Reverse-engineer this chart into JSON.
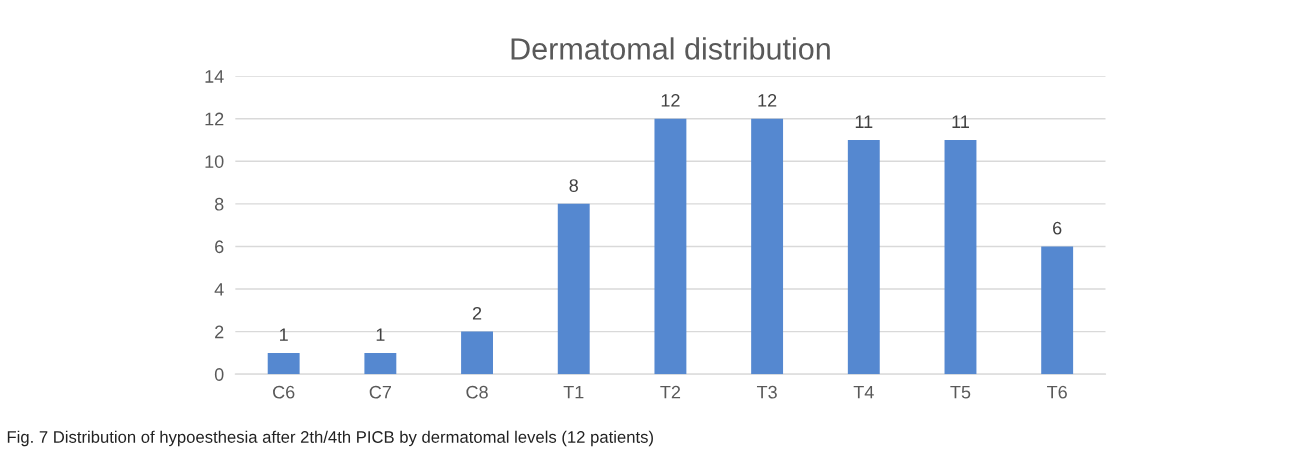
{
  "chart_data": {
    "type": "bar",
    "title": "Dermatomal distribution",
    "categories": [
      "C6",
      "C7",
      "C8",
      "T1",
      "T2",
      "T3",
      "T4",
      "T5",
      "T6"
    ],
    "values": [
      1,
      1,
      2,
      8,
      12,
      12,
      11,
      11,
      6
    ],
    "color": "#5588d0",
    "ylim": [
      0,
      14
    ],
    "yticks": [
      0,
      2,
      4,
      6,
      8,
      10,
      12,
      14
    ],
    "grid": "y",
    "data_labels": true,
    "legend": false,
    "annotations": [
      "Fig. 7 Distribution of hypoesthesia after 2th/4th PICB by dermatomal levels (12 patients)"
    ]
  }
}
